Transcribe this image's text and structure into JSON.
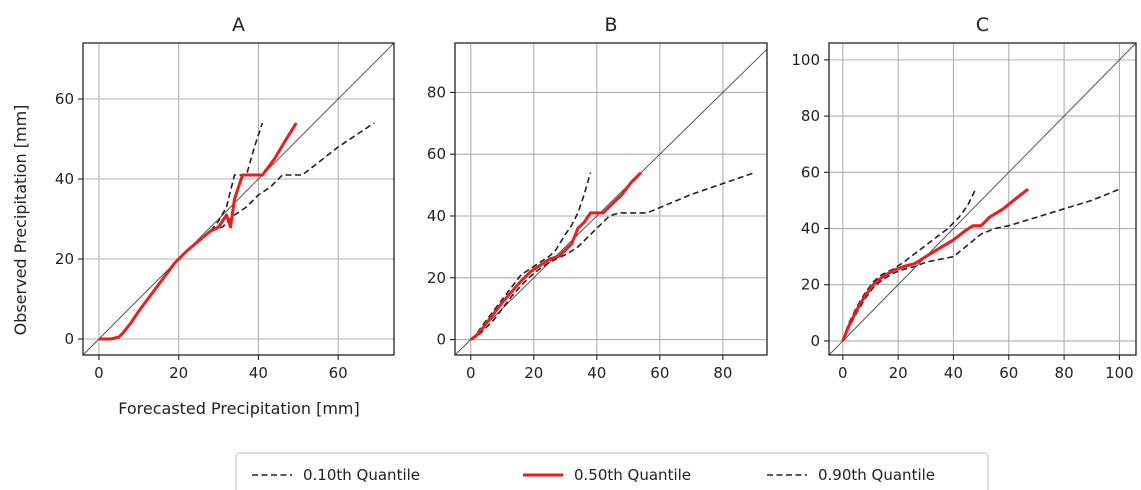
{
  "figure": {
    "xlabel": "Forecasted Precipitation [mm]",
    "ylabel": "Observed Precipitation [mm]",
    "legend": {
      "position": "bottom-center",
      "entries": [
        {
          "label": "0.10th Quantile",
          "style": "dashed",
          "color": "#222222"
        },
        {
          "label": "0.50th Quantile",
          "style": "solid",
          "color": "#ee1c1c"
        },
        {
          "label": "0.90th Quantile",
          "style": "dashed",
          "color": "#222222"
        }
      ]
    }
  },
  "chart_data": [
    {
      "type": "line",
      "title": "A",
      "xlim": [
        -4,
        74
      ],
      "ylim": [
        -4,
        74
      ],
      "xticks": [
        0,
        20,
        40,
        60
      ],
      "yticks": [
        0,
        20,
        40,
        60
      ],
      "grid": true,
      "reference_line": "y = x",
      "series": [
        {
          "name": "0.10th Quantile",
          "x": [
            0,
            3,
            5,
            6,
            8,
            10,
            13,
            16,
            19,
            22,
            25,
            28,
            30,
            32,
            33,
            34,
            37,
            39,
            41
          ],
          "y": [
            0,
            0,
            0.5,
            1.5,
            4,
            7,
            11,
            15,
            19,
            22,
            24.5,
            27,
            29.5,
            33,
            37,
            41,
            41,
            48,
            54
          ]
        },
        {
          "name": "0.50th Quantile",
          "x": [
            0,
            3,
            5,
            6,
            8,
            10,
            13,
            16,
            19,
            22,
            25,
            28,
            30,
            32,
            33,
            34,
            36,
            38,
            41,
            44,
            47,
            49.5
          ],
          "y": [
            0,
            0,
            0.5,
            1.5,
            4,
            7,
            11,
            15,
            19,
            22,
            24.5,
            27,
            28,
            31,
            28,
            35,
            41,
            41,
            41,
            45,
            50,
            54
          ]
        },
        {
          "name": "0.90th Quantile",
          "x": [
            0,
            3,
            5,
            6,
            8,
            10,
            13,
            16,
            19,
            22,
            25,
            28,
            31,
            34,
            37,
            40,
            43,
            46,
            51,
            60,
            69
          ],
          "y": [
            0,
            0,
            0.5,
            1.5,
            4,
            7,
            11,
            15,
            19,
            22,
            24.5,
            27,
            28,
            31,
            33,
            36,
            38,
            41,
            41,
            48,
            54
          ]
        }
      ]
    },
    {
      "type": "line",
      "title": "B",
      "xlim": [
        -5,
        94
      ],
      "ylim": [
        -5,
        96
      ],
      "xticks": [
        0,
        20,
        40,
        60,
        80
      ],
      "yticks": [
        0,
        20,
        40,
        60,
        80
      ],
      "grid": true,
      "reference_line": "y = x",
      "series": [
        {
          "name": "0.10th Quantile",
          "x": [
            0,
            2,
            4,
            7,
            10,
            13,
            16,
            19,
            22,
            25,
            27,
            30,
            32,
            34,
            36,
            38
          ],
          "y": [
            0,
            2,
            5,
            9,
            13,
            17,
            21,
            23,
            25,
            27,
            29,
            34,
            37,
            41,
            47,
            54
          ]
        },
        {
          "name": "0.50th Quantile",
          "x": [
            0,
            2,
            4,
            7,
            10,
            13,
            16,
            19,
            22,
            25,
            28,
            30,
            32,
            34,
            36,
            38,
            40,
            42,
            45,
            48,
            51,
            54
          ],
          "y": [
            0,
            1.5,
            4,
            8,
            12,
            15.5,
            19,
            22,
            24,
            26,
            27,
            29,
            31,
            36,
            38,
            41,
            41,
            41,
            44,
            47,
            51,
            54
          ]
        },
        {
          "name": "0.90th Quantile",
          "x": [
            0,
            2,
            4,
            7,
            10,
            13,
            16,
            19,
            22,
            25,
            28,
            31,
            34,
            37,
            40,
            44,
            47,
            56,
            70,
            90
          ],
          "y": [
            0,
            1,
            3,
            6,
            10,
            14,
            17.5,
            20.5,
            23,
            25,
            26.5,
            28,
            30,
            33,
            36,
            40,
            41,
            41,
            47,
            54
          ]
        }
      ]
    },
    {
      "type": "line",
      "title": "C",
      "xlim": [
        -5,
        106
      ],
      "ylim": [
        -5,
        106
      ],
      "xticks": [
        0,
        20,
        40,
        60,
        80,
        100
      ],
      "yticks": [
        0,
        20,
        40,
        60,
        80,
        100
      ],
      "grid": true,
      "reference_line": "y = x",
      "series": [
        {
          "name": "0.10th Quantile",
          "x": [
            0,
            2,
            5,
            8,
            11,
            14,
            18,
            22,
            26,
            30,
            34,
            38,
            42,
            45,
            48
          ],
          "y": [
            0,
            6,
            12,
            17,
            21,
            23.5,
            25.5,
            28,
            31,
            34,
            37,
            40,
            44,
            48,
            54
          ]
        },
        {
          "name": "0.50th Quantile",
          "x": [
            0,
            2,
            5,
            8,
            11,
            14,
            18,
            22,
            26,
            30,
            35,
            40,
            44,
            47,
            50,
            53,
            58,
            63,
            67
          ],
          "y": [
            0,
            5,
            11,
            16,
            20,
            22.5,
            25,
            26.5,
            27.5,
            30,
            33,
            36,
            39,
            41,
            41,
            44,
            47,
            51,
            54
          ]
        },
        {
          "name": "0.90th Quantile",
          "x": [
            0,
            2,
            5,
            8,
            11,
            14,
            18,
            22,
            26,
            30,
            35,
            40,
            45,
            50,
            55,
            60,
            70,
            80,
            90,
            100
          ],
          "y": [
            0,
            4.5,
            10,
            15,
            19,
            21.5,
            24,
            25.5,
            26.5,
            28,
            29,
            30,
            34,
            38,
            40,
            41,
            44,
            47,
            50,
            54
          ]
        }
      ]
    }
  ]
}
